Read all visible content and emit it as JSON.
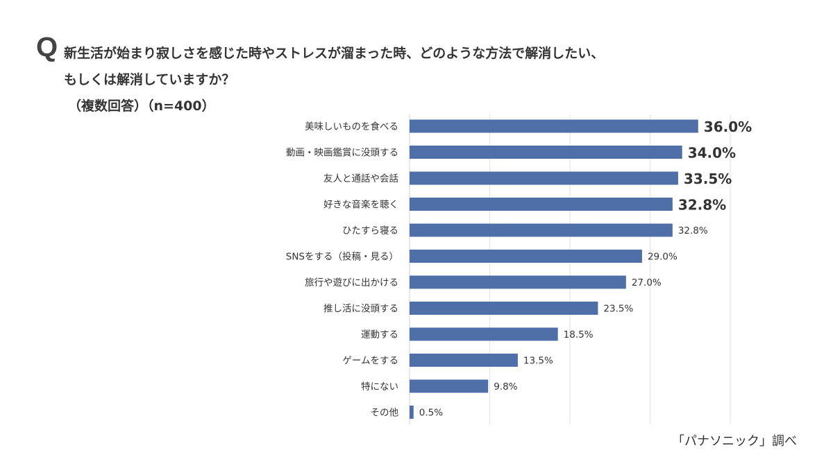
{
  "question_mark": "Q",
  "title_line1": "新生活が始まり寂しさを感じた時やストレスが溜まった時、どのような方法で解消したい、",
  "title_line2": "もしくは解消していますか？",
  "subtitle": "（複数回答）（n=400）",
  "source": "「パナソニック」調べ",
  "chart_data": {
    "type": "bar",
    "orientation": "horizontal",
    "categories": [
      "美味しいものを食べる",
      "動画・映画鑑賞に没頭する",
      "友人と通話や会話",
      "好きな音楽を聴く",
      "ひたすら寝る",
      "SNSをする（投稿・見る）",
      "旅行や遊びに出かける",
      "推し活に没頭する",
      "運動する",
      "ゲームをする",
      "特にない",
      "その他"
    ],
    "values": [
      36.0,
      34.0,
      33.5,
      32.8,
      32.8,
      29.0,
      27.0,
      23.5,
      18.5,
      13.5,
      9.8,
      0.5
    ],
    "data_labels": [
      "36.0%",
      "34.0%",
      "33.5%",
      "32.8%",
      "32.8%",
      "29.0%",
      "27.0%",
      "23.5%",
      "18.5%",
      "13.5%",
      "9.8%",
      "0.5%"
    ],
    "highlighted_top": 4,
    "xlim": [
      0,
      40
    ],
    "grid": true,
    "bar_color": "#4f6fa8",
    "grid_color": "#e2e2e2"
  }
}
